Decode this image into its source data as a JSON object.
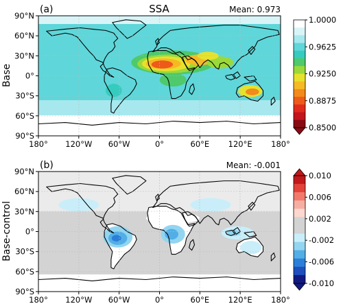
{
  "figure": {
    "panels": [
      {
        "id": "a",
        "letter": "(a)",
        "title": "SSA",
        "mean_text": "Mean: 0.973",
        "row_label": "Base",
        "colorbar": {
          "ticks": [
            "1.0000",
            "0.9625",
            "0.9250",
            "0.8875",
            "0.8500"
          ],
          "colors": [
            "#ffffff",
            "#d9f4f7",
            "#a6e8ee",
            "#5fd6d9",
            "#36cbbf",
            "#4ec96b",
            "#9bd93a",
            "#e6e22c",
            "#f6b924",
            "#f28a1c",
            "#ee5a1a",
            "#e02b1c",
            "#c4141c",
            "#8a0a14"
          ]
        }
      },
      {
        "id": "b",
        "letter": "(b)",
        "mean_text": "Mean: -0.001",
        "row_label": "Base-control",
        "colorbar": {
          "ticks": [
            "0.010",
            "0.006",
            "0.002",
            "-0.002",
            "-0.006",
            "-0.010"
          ],
          "colors": [
            "#c2181a",
            "#e3423a",
            "#f27a6c",
            "#f7aea2",
            "#fbd7d0",
            "#d3d3d3",
            "#d3d3d3",
            "#c9eefa",
            "#92d5f1",
            "#53aee6",
            "#2b7fd8",
            "#1e4fbd",
            "#121a82"
          ]
        }
      }
    ],
    "lat_ticks": [
      "90°N",
      "60°N",
      "30°N",
      "0°",
      "30°S",
      "60°S",
      "90°S"
    ],
    "lon_ticks": [
      "180°",
      "120°W",
      "60°W",
      "0°",
      "60°E",
      "120°E",
      "180°"
    ]
  }
}
